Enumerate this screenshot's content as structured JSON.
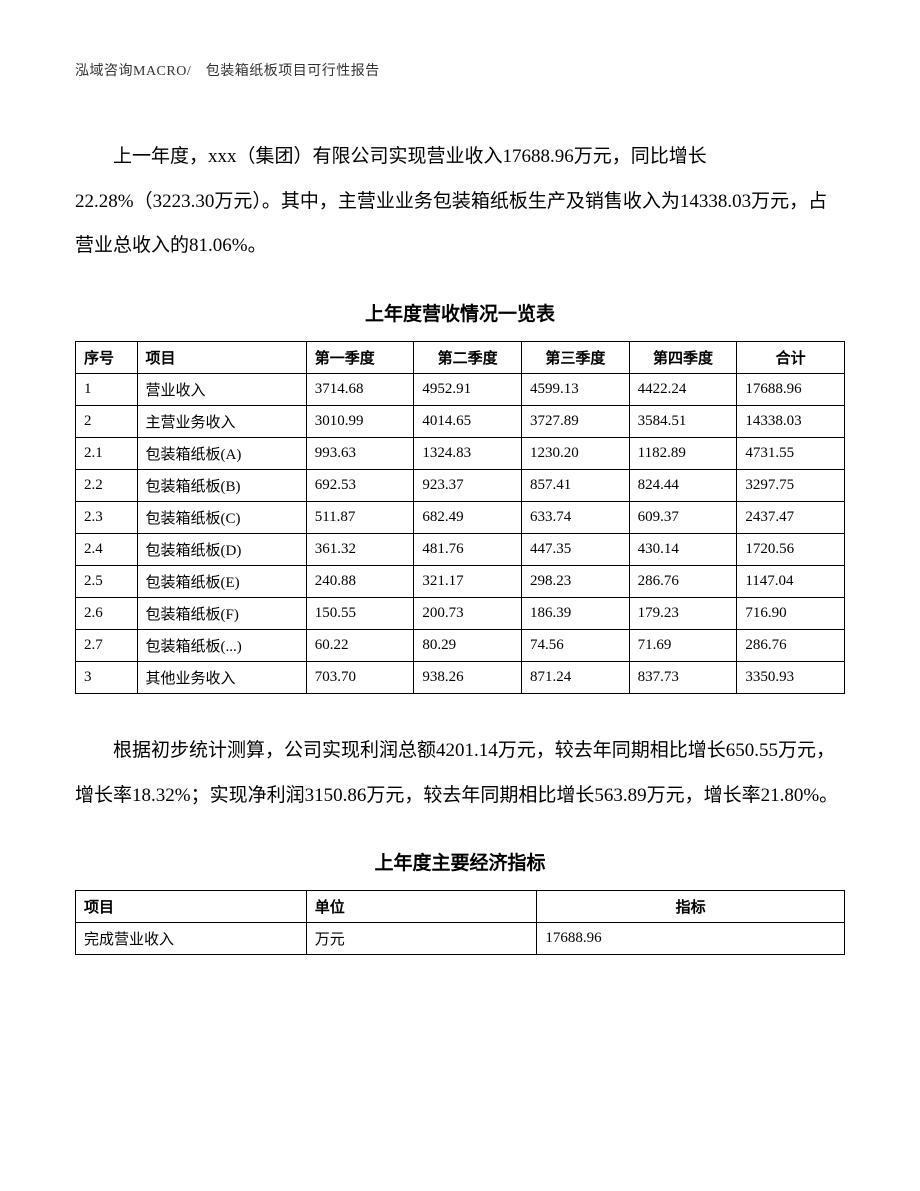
{
  "header": "泓域咨询MACRO/　包装箱纸板项目可行性报告",
  "paragraph1": "上一年度，xxx（集团）有限公司实现营业收入17688.96万元，同比增长22.28%（3223.30万元）。其中，主营业业务包装箱纸板生产及销售收入为14338.03万元，占营业总收入的81.06%。",
  "table1": {
    "title": "上年度营收情况一览表",
    "columns": [
      "序号",
      "项目",
      "第一季度",
      "第二季度",
      "第三季度",
      "第四季度",
      "合计"
    ],
    "rows": [
      [
        "1",
        "营业收入",
        "3714.68",
        "4952.91",
        "4599.13",
        "4422.24",
        "17688.96"
      ],
      [
        "2",
        "主营业务收入",
        "3010.99",
        "4014.65",
        "3727.89",
        "3584.51",
        "14338.03"
      ],
      [
        "2.1",
        "包装箱纸板(A)",
        "993.63",
        "1324.83",
        "1230.20",
        "1182.89",
        "4731.55"
      ],
      [
        "2.2",
        "包装箱纸板(B)",
        "692.53",
        "923.37",
        "857.41",
        "824.44",
        "3297.75"
      ],
      [
        "2.3",
        "包装箱纸板(C)",
        "511.87",
        "682.49",
        "633.74",
        "609.37",
        "2437.47"
      ],
      [
        "2.4",
        "包装箱纸板(D)",
        "361.32",
        "481.76",
        "447.35",
        "430.14",
        "1720.56"
      ],
      [
        "2.5",
        "包装箱纸板(E)",
        "240.88",
        "321.17",
        "298.23",
        "286.76",
        "1147.04"
      ],
      [
        "2.6",
        "包装箱纸板(F)",
        "150.55",
        "200.73",
        "186.39",
        "179.23",
        "716.90"
      ],
      [
        "2.7",
        "包装箱纸板(...)",
        "60.22",
        "80.29",
        "74.56",
        "71.69",
        "286.76"
      ],
      [
        "3",
        "其他业务收入",
        "703.70",
        "938.26",
        "871.24",
        "837.73",
        "3350.93"
      ]
    ]
  },
  "paragraph2": "根据初步统计测算，公司实现利润总额4201.14万元，较去年同期相比增长650.55万元，增长率18.32%；实现净利润3150.86万元，较去年同期相比增长563.89万元，增长率21.80%。",
  "table2": {
    "title": "上年度主要经济指标",
    "columns": [
      "项目",
      "单位",
      "指标"
    ],
    "rows": [
      [
        "完成营业收入",
        "万元",
        "17688.96"
      ]
    ]
  }
}
